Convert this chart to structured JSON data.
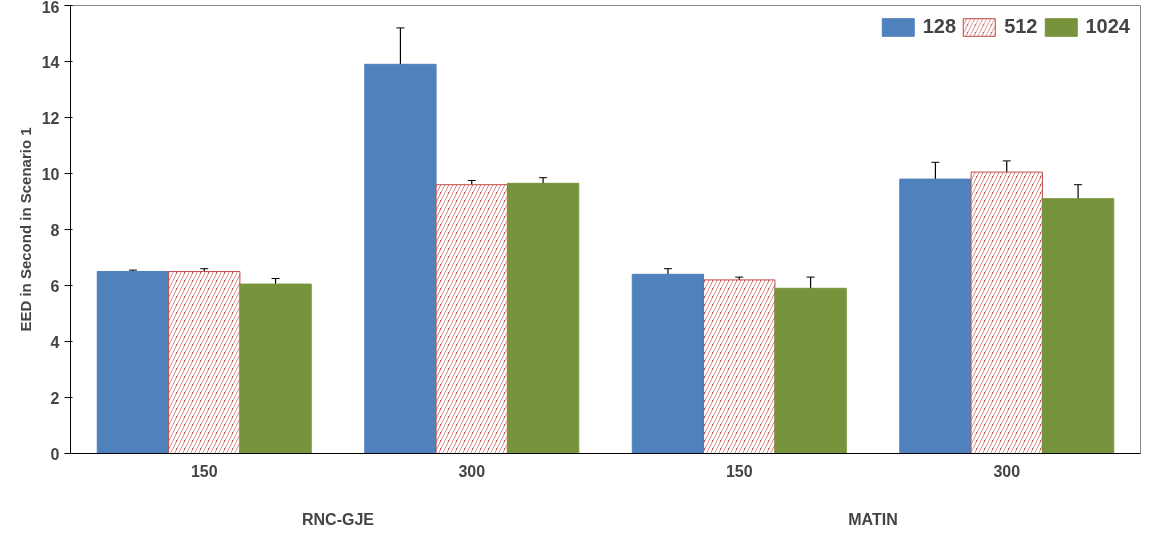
{
  "chart_data": {
    "type": "bar",
    "ylabel": "EED in Second in Scenario 1",
    "categories": [
      "150",
      "300",
      "150",
      "300"
    ],
    "annotations": [
      "RNC-GJE",
      "MATIN"
    ],
    "ylim": [
      0,
      16
    ],
    "yticks": [
      0,
      2,
      4,
      6,
      8,
      10,
      12,
      14,
      16
    ],
    "grid": false,
    "legend": "top right",
    "series": [
      {
        "name": "128",
        "color": "#4f81bd",
        "values": [
          6.5,
          13.9,
          6.4,
          9.8
        ],
        "errors": [
          0.05,
          1.3,
          0.2,
          0.6
        ]
      },
      {
        "name": "512",
        "color": "#c0504d",
        "values": [
          6.5,
          9.6,
          6.2,
          10.05
        ],
        "errors": [
          0.1,
          0.15,
          0.1,
          0.4
        ]
      },
      {
        "name": "1024",
        "color": "#77933c",
        "values": [
          6.05,
          9.65,
          5.9,
          9.1
        ],
        "errors": [
          0.2,
          0.2,
          0.4,
          0.5
        ]
      }
    ]
  }
}
